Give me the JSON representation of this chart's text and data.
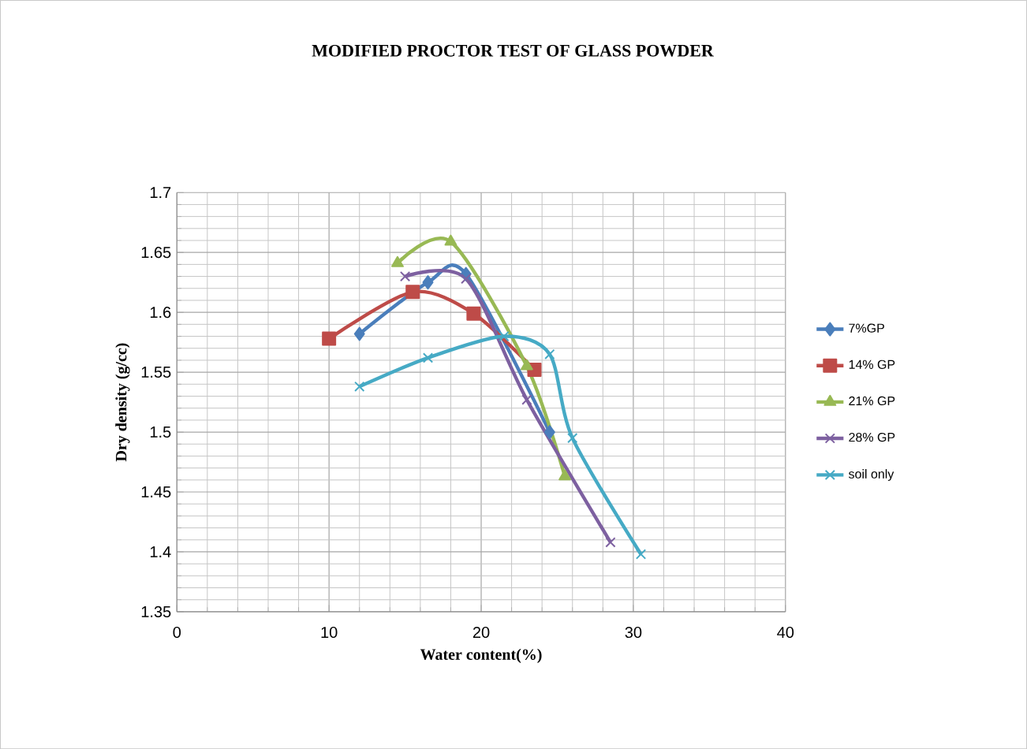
{
  "chart_data": {
    "type": "line",
    "title": "MODIFIED PROCTOR TEST OF GLASS POWDER",
    "xlabel": "Water content(%)",
    "ylabel": "Dry density (g/cc)",
    "xlim": [
      0,
      40
    ],
    "xticks": [
      0,
      10,
      20,
      30,
      40
    ],
    "ylim": [
      1.35,
      1.7
    ],
    "yticks": [
      1.35,
      1.4,
      1.45,
      1.5,
      1.55,
      1.6,
      1.65,
      1.7
    ],
    "grid": true,
    "legend": "right",
    "series": [
      {
        "name": "7%GP",
        "color": "#4a7ebb",
        "marker": "diamond",
        "x": [
          12,
          16.5,
          19,
          24.5
        ],
        "values": [
          1.582,
          1.625,
          1.632,
          1.5
        ]
      },
      {
        "name": "14% GP",
        "color": "#be4b48",
        "marker": "square",
        "x": [
          10,
          15.5,
          19.5,
          23.5
        ],
        "values": [
          1.578,
          1.617,
          1.599,
          1.552
        ]
      },
      {
        "name": "21% GP",
        "color": "#98b954",
        "marker": "triangle",
        "x": [
          14.5,
          18,
          23,
          25.5
        ],
        "values": [
          1.641,
          1.659,
          1.555,
          1.463
        ]
      },
      {
        "name": "28% GP",
        "color": "#7d60a0",
        "marker": "cross",
        "x": [
          15,
          19,
          23,
          28.5
        ],
        "values": [
          1.63,
          1.628,
          1.527,
          1.408
        ]
      },
      {
        "name": "soil only",
        "color": "#46aac5",
        "marker": "cross",
        "x": [
          12,
          16.5,
          21.5,
          24.5,
          26,
          30.5
        ],
        "values": [
          1.538,
          1.562,
          1.58,
          1.565,
          1.495,
          1.398
        ]
      }
    ]
  }
}
